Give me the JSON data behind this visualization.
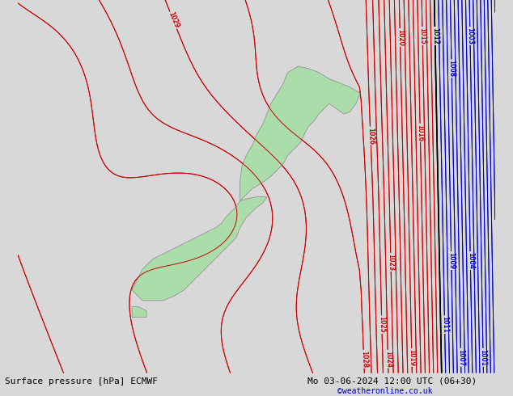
{
  "title_left": "Surface pressure [hPa] ECMWF",
  "title_right": "Mo 03-06-2024 12:00 UTC (06+30)",
  "watermark": "©weatheronline.co.uk",
  "watermark_color": "#0000cc",
  "bg_color": "#d8d8d8",
  "land_color": "#aaddaa",
  "fig_width": 6.34,
  "fig_height": 4.9,
  "dpi": 100,
  "red_contour_color": "#cc0000",
  "blue_contour_color": "#0000cc",
  "black_contour_color": "#000000",
  "lon_min": 162.0,
  "lon_max": 185.0,
  "lat_min": -50.0,
  "lat_max": -32.0,
  "north_island_lon": [
    172.7,
    173.0,
    173.3,
    173.8,
    174.2,
    174.5,
    174.8,
    175.0,
    175.3,
    175.6,
    175.8,
    176.0,
    176.3,
    176.5,
    176.8,
    177.0,
    177.3,
    177.7,
    178.0,
    178.3,
    178.5,
    178.0,
    177.5,
    177.0,
    176.5,
    176.0,
    175.5,
    175.0,
    174.8,
    174.5,
    174.2,
    174.0,
    173.8,
    173.5,
    173.3,
    173.0,
    172.8,
    172.7,
    172.7
  ],
  "north_island_lat": [
    -41.7,
    -41.4,
    -41.1,
    -40.8,
    -40.5,
    -40.2,
    -39.9,
    -39.5,
    -39.2,
    -38.9,
    -38.5,
    -38.1,
    -37.8,
    -37.5,
    -37.2,
    -37.0,
    -37.2,
    -37.5,
    -37.4,
    -37.0,
    -36.5,
    -36.2,
    -36.0,
    -35.8,
    -35.5,
    -35.3,
    -35.2,
    -35.5,
    -36.0,
    -36.5,
    -37.0,
    -37.5,
    -38.0,
    -38.5,
    -39.0,
    -39.5,
    -40.0,
    -40.8,
    -41.7
  ],
  "south_island_lon": [
    172.7,
    172.5,
    172.2,
    172.0,
    171.8,
    171.5,
    170.5,
    169.5,
    168.5,
    168.0,
    167.5,
    168.0,
    168.5,
    169.0,
    169.5,
    170.0,
    170.5,
    171.0,
    171.5,
    172.0,
    172.5,
    172.7,
    173.0,
    173.5,
    173.8,
    174.0,
    173.5,
    173.0,
    172.7
  ],
  "south_island_lat": [
    -41.7,
    -42.0,
    -42.3,
    -42.5,
    -42.8,
    -43.0,
    -43.5,
    -44.0,
    -44.5,
    -45.0,
    -46.0,
    -46.5,
    -46.5,
    -46.5,
    -46.3,
    -46.0,
    -45.5,
    -45.0,
    -44.5,
    -44.0,
    -43.5,
    -43.0,
    -42.5,
    -42.0,
    -41.8,
    -41.5,
    -41.5,
    -41.6,
    -41.7
  ],
  "stewart_lon": [
    167.5,
    167.8,
    168.2,
    168.2,
    167.5,
    167.5
  ],
  "stewart_lat": [
    -46.8,
    -46.8,
    -47.0,
    -47.3,
    -47.3,
    -46.8
  ]
}
